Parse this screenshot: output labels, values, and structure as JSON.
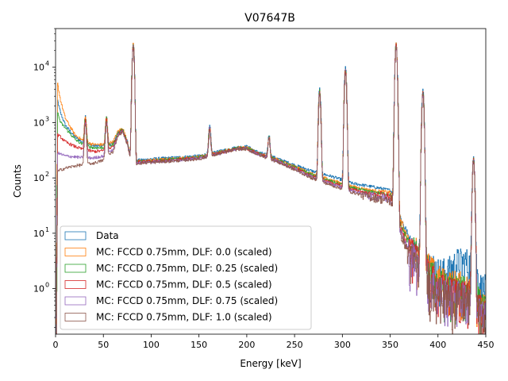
{
  "chart_data": {
    "type": "line",
    "title": "V07647B",
    "xlabel": "Energy [keV]",
    "ylabel": "Counts",
    "xlim": [
      0,
      450
    ],
    "ylim": [
      0.15,
      50000
    ],
    "yscale": "log",
    "grid": false,
    "legend_position": "lower-left",
    "x_ticks": [
      0,
      50,
      100,
      150,
      200,
      250,
      300,
      350,
      400,
      450
    ],
    "y_ticks": [
      {
        "value": 1,
        "label": "10",
        "exp": "0"
      },
      {
        "value": 10,
        "label": "10",
        "exp": "1"
      },
      {
        "value": 100,
        "label": "10",
        "exp": "2"
      },
      {
        "value": 1000,
        "label": "10",
        "exp": "3"
      },
      {
        "value": 10000,
        "label": "10",
        "exp": "4"
      }
    ],
    "peaks": [
      {
        "energy": 31,
        "height": 900
      },
      {
        "energy": 53,
        "height": 900
      },
      {
        "energy": 81,
        "height": 28000
      },
      {
        "energy": 161,
        "height": 600
      },
      {
        "energy": 223,
        "height": 350
      },
      {
        "energy": 276,
        "height": 4000
      },
      {
        "energy": 303,
        "height": 10000
      },
      {
        "energy": 356,
        "height": 28000
      },
      {
        "energy": 384,
        "height": 4000
      },
      {
        "energy": 437,
        "height": 250
      }
    ],
    "series": [
      {
        "name": "Data",
        "color": "#1f77b4",
        "x": [
          0.5,
          2,
          5,
          10,
          20,
          30,
          40,
          50,
          60,
          65,
          70,
          75,
          79,
          83,
          86,
          90,
          100,
          120,
          150,
          170,
          190,
          200,
          210,
          230,
          250,
          270,
          290,
          310,
          330,
          350,
          355,
          360,
          370,
          380,
          390,
          400,
          410,
          420,
          430,
          440,
          445,
          450
        ],
        "y": [
          0.2,
          2500,
          1500,
          900,
          550,
          420,
          380,
          380,
          420,
          650,
          750,
          450,
          200,
          180,
          210,
          210,
          220,
          230,
          250,
          300,
          360,
          370,
          300,
          230,
          170,
          130,
          105,
          80,
          70,
          60,
          45,
          20,
          8,
          5,
          3,
          2,
          2,
          3,
          3,
          2,
          1,
          1
        ]
      },
      {
        "name": "MC: FCCD 0.75mm, DLF: 0.0 (scaled)",
        "color": "#ff7f0e",
        "x": [
          0.5,
          2,
          5,
          10,
          20,
          30,
          40,
          50,
          60,
          65,
          70,
          75,
          79,
          83,
          86,
          90,
          100,
          120,
          150,
          170,
          190,
          200,
          210,
          230,
          250,
          270,
          290,
          310,
          330,
          350,
          355,
          360,
          370,
          380,
          390,
          400,
          410,
          420,
          430,
          440,
          445,
          450
        ],
        "y": [
          0.2,
          5000,
          2500,
          1200,
          600,
          450,
          400,
          400,
          450,
          700,
          800,
          450,
          200,
          170,
          200,
          200,
          210,
          220,
          240,
          290,
          350,
          350,
          290,
          220,
          160,
          115,
          90,
          70,
          60,
          55,
          40,
          18,
          7,
          4,
          2.5,
          1.5,
          1.2,
          1.2,
          1,
          0.8,
          0.5,
          0.4
        ]
      },
      {
        "name": "MC: FCCD 0.75mm, DLF: 0.25 (scaled)",
        "color": "#2ca02c",
        "x": [
          0.5,
          2,
          5,
          10,
          20,
          30,
          40,
          50,
          60,
          65,
          70,
          75,
          79,
          83,
          86,
          90,
          100,
          120,
          150,
          170,
          190,
          200,
          210,
          230,
          250,
          270,
          290,
          310,
          330,
          350,
          355,
          360,
          370,
          380,
          390,
          400,
          410,
          420,
          430,
          440,
          445,
          450
        ],
        "y": [
          0.2,
          1500,
          1000,
          800,
          500,
          380,
          350,
          350,
          400,
          650,
          750,
          430,
          195,
          170,
          200,
          200,
          205,
          215,
          235,
          285,
          345,
          345,
          285,
          215,
          155,
          110,
          85,
          66,
          56,
          50,
          36,
          15,
          6,
          3.5,
          2,
          1.3,
          1,
          1,
          0.9,
          0.7,
          0.5,
          0.4
        ]
      },
      {
        "name": "MC: FCCD 0.75mm, DLF: 0.5 (scaled)",
        "color": "#d62728",
        "x": [
          0.5,
          2,
          5,
          10,
          20,
          30,
          40,
          50,
          60,
          65,
          70,
          75,
          79,
          83,
          86,
          90,
          100,
          120,
          150,
          170,
          190,
          200,
          210,
          230,
          250,
          270,
          290,
          310,
          330,
          350,
          355,
          360,
          370,
          380,
          390,
          400,
          410,
          420,
          430,
          440,
          445,
          450
        ],
        "y": [
          0.2,
          600,
          550,
          450,
          370,
          320,
          300,
          310,
          370,
          620,
          720,
          420,
          190,
          165,
          195,
          195,
          200,
          210,
          230,
          280,
          340,
          340,
          280,
          210,
          150,
          105,
          80,
          62,
          52,
          46,
          33,
          13,
          5,
          3,
          1.8,
          1.1,
          0.9,
          0.9,
          0.8,
          0.6,
          0.4,
          0.3
        ]
      },
      {
        "name": "MC: FCCD 0.75mm, DLF: 0.75 (scaled)",
        "color": "#9467bd",
        "x": [
          0.5,
          2,
          5,
          10,
          20,
          30,
          40,
          50,
          60,
          65,
          70,
          75,
          79,
          83,
          86,
          90,
          100,
          120,
          150,
          170,
          190,
          200,
          210,
          230,
          250,
          270,
          290,
          310,
          330,
          350,
          355,
          360,
          370,
          380,
          390,
          400,
          410,
          420,
          430,
          440,
          445,
          450
        ],
        "y": [
          0.2,
          280,
          270,
          250,
          240,
          230,
          230,
          250,
          330,
          600,
          700,
          410,
          185,
          160,
          190,
          190,
          195,
          205,
          225,
          275,
          335,
          335,
          275,
          205,
          145,
          100,
          76,
          58,
          48,
          42,
          30,
          11,
          4.5,
          2.5,
          1.5,
          1,
          0.8,
          0.8,
          0.7,
          0.5,
          0.35,
          0.3
        ]
      },
      {
        "name": "MC: FCCD 0.75mm, DLF: 1.0 (scaled)",
        "color": "#8c564b",
        "x": [
          0.5,
          2,
          5,
          10,
          20,
          30,
          40,
          50,
          60,
          65,
          70,
          75,
          79,
          83,
          86,
          90,
          100,
          120,
          150,
          170,
          190,
          200,
          210,
          230,
          250,
          270,
          290,
          310,
          330,
          350,
          355,
          360,
          370,
          380,
          390,
          400,
          410,
          420,
          430,
          440,
          445,
          450
        ],
        "y": [
          0.2,
          130,
          140,
          150,
          165,
          175,
          185,
          210,
          300,
          580,
          680,
          400,
          180,
          155,
          185,
          185,
          190,
          200,
          220,
          270,
          330,
          330,
          270,
          200,
          140,
          95,
          72,
          55,
          45,
          38,
          27,
          10,
          4,
          2.2,
          1.3,
          0.9,
          0.7,
          0.7,
          0.6,
          0.45,
          0.3,
          0.25
        ]
      }
    ]
  }
}
